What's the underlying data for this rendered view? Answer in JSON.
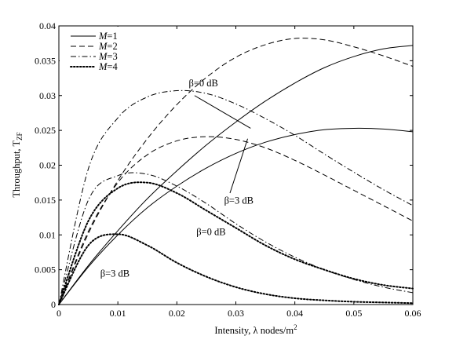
{
  "chart_data": {
    "type": "line",
    "xlabel": "Intensity, λ nodes/m",
    "xlabel_sup": "2",
    "ylabel": "Throughput, T",
    "ylabel_sub": "ZF",
    "xlim": [
      0,
      0.06
    ],
    "ylim": [
      0,
      0.04
    ],
    "xticks": [
      "0",
      "0.01",
      "0.02",
      "0.03",
      "0.04",
      "0.05",
      "0.06"
    ],
    "yticks": [
      "0",
      "0.005",
      "0.01",
      "0.015",
      "0.02",
      "0.025",
      "0.03",
      "0.035",
      "0.04"
    ],
    "grid": false,
    "legend_position": "top-left",
    "legend": [
      "M=1",
      "M=2",
      "M=3",
      "M=4"
    ],
    "series": [
      {
        "name": "M=1",
        "condition": "β=0 dB",
        "style": "solid",
        "x": [
          0,
          0.005,
          0.01,
          0.015,
          0.02,
          0.025,
          0.03,
          0.035,
          0.04,
          0.045,
          0.05,
          0.055,
          0.06
        ],
        "y": [
          0,
          0.0056,
          0.0106,
          0.0152,
          0.0192,
          0.0229,
          0.0262,
          0.0292,
          0.0318,
          0.034,
          0.0356,
          0.0367,
          0.0372
        ]
      },
      {
        "name": "M=1",
        "condition": "β=3 dB",
        "style": "solid",
        "x": [
          0,
          0.005,
          0.01,
          0.015,
          0.02,
          0.025,
          0.03,
          0.035,
          0.04,
          0.045,
          0.05,
          0.055,
          0.06
        ],
        "y": [
          0,
          0.0054,
          0.01,
          0.0139,
          0.017,
          0.0196,
          0.0217,
          0.0233,
          0.0244,
          0.0251,
          0.0253,
          0.0252,
          0.0248
        ]
      },
      {
        "name": "M=2",
        "condition": "β=0 dB",
        "style": "dashed",
        "x": [
          0,
          0.005,
          0.01,
          0.015,
          0.02,
          0.025,
          0.03,
          0.035,
          0.04,
          0.045,
          0.05,
          0.055,
          0.06
        ],
        "y": [
          0,
          0.0102,
          0.0178,
          0.0238,
          0.0287,
          0.0326,
          0.0355,
          0.0373,
          0.0382,
          0.038,
          0.037,
          0.0357,
          0.0342
        ]
      },
      {
        "name": "M=2",
        "condition": "β=3 dB",
        "style": "dashed",
        "x": [
          0,
          0.005,
          0.01,
          0.015,
          0.02,
          0.025,
          0.03,
          0.035,
          0.04,
          0.045,
          0.05,
          0.055,
          0.06
        ],
        "y": [
          0,
          0.0105,
          0.0175,
          0.0215,
          0.0235,
          0.0241,
          0.0237,
          0.0225,
          0.0207,
          0.0186,
          0.0164,
          0.0142,
          0.012
        ]
      },
      {
        "name": "M=3",
        "condition": "β=0 dB",
        "style": "dashdot",
        "x": [
          0,
          0.005,
          0.01,
          0.015,
          0.02,
          0.025,
          0.03,
          0.035,
          0.04,
          0.045,
          0.05,
          0.055,
          0.06
        ],
        "y": [
          0,
          0.0195,
          0.0268,
          0.0298,
          0.0307,
          0.0303,
          0.0288,
          0.0267,
          0.0243,
          0.0216,
          0.019,
          0.0165,
          0.0142
        ]
      },
      {
        "name": "M=3",
        "condition": "β=3 dB",
        "style": "dashdot",
        "x": [
          0,
          0.005,
          0.01,
          0.015,
          0.02,
          0.025,
          0.03,
          0.035,
          0.04,
          0.045,
          0.05,
          0.055,
          0.06
        ],
        "y": [
          0,
          0.015,
          0.0185,
          0.0187,
          0.017,
          0.0145,
          0.0116,
          0.009,
          0.0068,
          0.005,
          0.0036,
          0.0025,
          0.0017
        ]
      },
      {
        "name": "M=4",
        "condition": "β=0 dB",
        "style": "dotted",
        "x": [
          0,
          0.005,
          0.01,
          0.015,
          0.02,
          0.025,
          0.03,
          0.035,
          0.04,
          0.045,
          0.05,
          0.055,
          0.06
        ],
        "y": [
          0,
          0.012,
          0.0167,
          0.0175,
          0.016,
          0.0135,
          0.011,
          0.0085,
          0.0065,
          0.005,
          0.0037,
          0.0028,
          0.0023
        ]
      },
      {
        "name": "M=4",
        "condition": "β=3 dB",
        "style": "dotted",
        "x": [
          0,
          0.005,
          0.01,
          0.015,
          0.02,
          0.025,
          0.03,
          0.035,
          0.04,
          0.045,
          0.05,
          0.055,
          0.06
        ],
        "y": [
          0,
          0.0085,
          0.0101,
          0.0085,
          0.006,
          0.004,
          0.0025,
          0.0015,
          0.0009,
          0.0006,
          0.0004,
          0.0003,
          0.0002
        ]
      }
    ],
    "annotations": [
      {
        "text": "β=0 dB",
        "x": 0.0245,
        "y": 0.0313
      },
      {
        "text": "β=3 dB",
        "x": 0.0305,
        "y": 0.0145
      },
      {
        "text": "β=0 dB",
        "x": 0.0258,
        "y": 0.01
      },
      {
        "text": "β=3 dB",
        "x": 0.0095,
        "y": 0.004
      }
    ],
    "pointer_lines": [
      {
        "from": [
          0.023,
          0.03
        ],
        "to": [
          0.0325,
          0.0253
        ]
      },
      {
        "from": [
          0.029,
          0.016
        ],
        "to": [
          0.032,
          0.0238
        ]
      }
    ]
  }
}
